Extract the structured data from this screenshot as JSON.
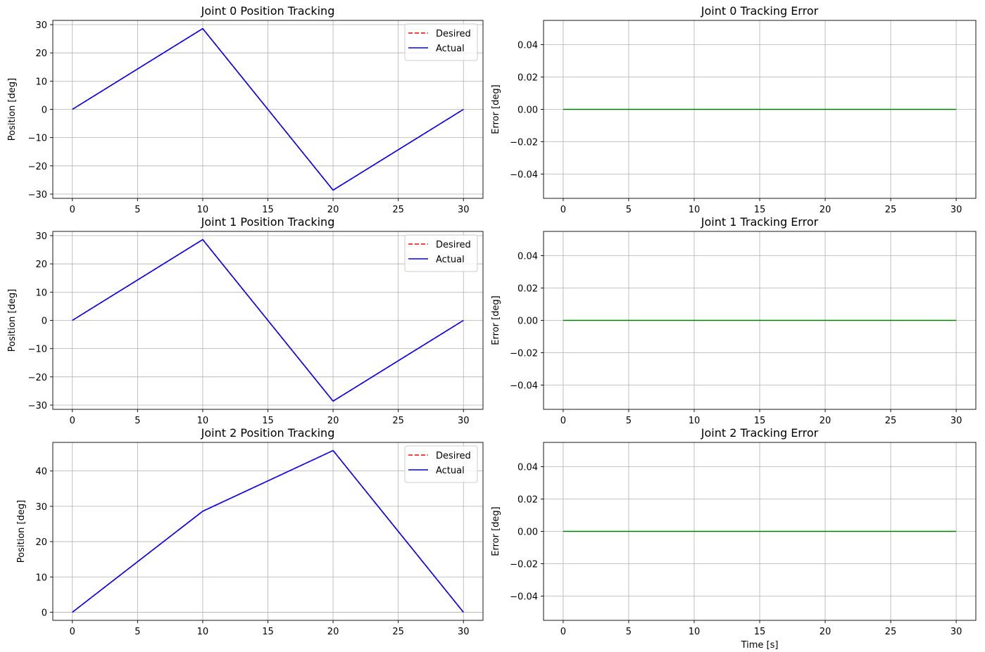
{
  "chart_data": [
    {
      "type": "line",
      "title": "Joint 0 Position Tracking",
      "xlabel": "",
      "ylabel": "Position [deg]",
      "xlim": [
        -1.5,
        31.5
      ],
      "ylim": [
        -31.5,
        31.5
      ],
      "xticks": [
        0,
        5,
        10,
        15,
        20,
        25,
        30
      ],
      "yticks": [
        -30,
        -20,
        -10,
        0,
        10,
        20,
        30
      ],
      "ytick_labels": [
        "−30",
        "−20",
        "−10",
        "0",
        "10",
        "20",
        "30"
      ],
      "grid": true,
      "legend": {
        "placement": "top-right"
      },
      "series": [
        {
          "name": "Desired",
          "color": "#ff0000",
          "style": "dashed",
          "x": [
            0,
            10,
            20,
            30
          ],
          "y": [
            0,
            28.6,
            -28.6,
            0
          ]
        },
        {
          "name": "Actual",
          "color": "#0000ff",
          "style": "solid",
          "x": [
            0,
            10,
            20,
            30
          ],
          "y": [
            0,
            28.6,
            -28.6,
            0
          ]
        }
      ]
    },
    {
      "type": "line",
      "title": "Joint 0 Tracking Error",
      "xlabel": "",
      "ylabel": "Error [deg]",
      "xlim": [
        -1.5,
        31.5
      ],
      "ylim": [
        -0.055,
        0.055
      ],
      "xticks": [
        0,
        5,
        10,
        15,
        20,
        25,
        30
      ],
      "yticks": [
        -0.04,
        -0.02,
        0,
        0.02,
        0.04
      ],
      "ytick_labels": [
        "−0.04",
        "−0.02",
        "0.00",
        "0.02",
        "0.04"
      ],
      "grid": true,
      "series": [
        {
          "color": "#008000",
          "style": "solid",
          "x": [
            0,
            30
          ],
          "y": [
            0,
            0
          ]
        }
      ]
    },
    {
      "type": "line",
      "title": "Joint 1 Position Tracking",
      "xlabel": "",
      "ylabel": "Position [deg]",
      "xlim": [
        -1.5,
        31.5
      ],
      "ylim": [
        -31.5,
        31.5
      ],
      "xticks": [
        0,
        5,
        10,
        15,
        20,
        25,
        30
      ],
      "yticks": [
        -30,
        -20,
        -10,
        0,
        10,
        20,
        30
      ],
      "ytick_labels": [
        "−30",
        "−20",
        "−10",
        "0",
        "10",
        "20",
        "30"
      ],
      "grid": true,
      "legend": {
        "placement": "top-right"
      },
      "series": [
        {
          "name": "Desired",
          "color": "#ff0000",
          "style": "dashed",
          "x": [
            0,
            10,
            20,
            30
          ],
          "y": [
            0,
            28.6,
            -28.6,
            0
          ]
        },
        {
          "name": "Actual",
          "color": "#0000ff",
          "style": "solid",
          "x": [
            0,
            10,
            20,
            30
          ],
          "y": [
            0,
            28.6,
            -28.6,
            0
          ]
        }
      ]
    },
    {
      "type": "line",
      "title": "Joint 1 Tracking Error",
      "xlabel": "",
      "ylabel": "Error [deg]",
      "xlim": [
        -1.5,
        31.5
      ],
      "ylim": [
        -0.055,
        0.055
      ],
      "xticks": [
        0,
        5,
        10,
        15,
        20,
        25,
        30
      ],
      "yticks": [
        -0.04,
        -0.02,
        0,
        0.02,
        0.04
      ],
      "ytick_labels": [
        "−0.04",
        "−0.02",
        "0.00",
        "0.02",
        "0.04"
      ],
      "grid": true,
      "series": [
        {
          "color": "#008000",
          "style": "solid",
          "x": [
            0,
            30
          ],
          "y": [
            0,
            0
          ]
        }
      ]
    },
    {
      "type": "line",
      "title": "Joint 2 Position Tracking",
      "xlabel": "",
      "ylabel": "Position [deg]",
      "xlim": [
        -1.5,
        31.5
      ],
      "ylim": [
        -2.3,
        48.1
      ],
      "xticks": [
        0,
        5,
        10,
        15,
        20,
        25,
        30
      ],
      "yticks": [
        0,
        10,
        20,
        30,
        40
      ],
      "ytick_labels": [
        "0",
        "10",
        "20",
        "30",
        "40"
      ],
      "grid": true,
      "legend": {
        "placement": "top-right"
      },
      "series": [
        {
          "name": "Desired",
          "color": "#ff0000",
          "style": "dashed",
          "x": [
            0,
            10,
            20,
            30
          ],
          "y": [
            0,
            28.6,
            45.8,
            0
          ]
        },
        {
          "name": "Actual",
          "color": "#0000ff",
          "style": "solid",
          "x": [
            0,
            10,
            20,
            30
          ],
          "y": [
            0,
            28.6,
            45.8,
            0
          ]
        }
      ]
    },
    {
      "type": "line",
      "title": "Joint 2 Tracking Error",
      "xlabel": "Time [s]",
      "ylabel": "Error [deg]",
      "xlim": [
        -1.5,
        31.5
      ],
      "ylim": [
        -0.055,
        0.055
      ],
      "xticks": [
        0,
        5,
        10,
        15,
        20,
        25,
        30
      ],
      "yticks": [
        -0.04,
        -0.02,
        0,
        0.02,
        0.04
      ],
      "ytick_labels": [
        "−0.04",
        "−0.02",
        "0.00",
        "0.02",
        "0.04"
      ],
      "grid": true,
      "series": [
        {
          "color": "#008000",
          "style": "solid",
          "x": [
            0,
            30
          ],
          "y": [
            0,
            0
          ]
        }
      ]
    }
  ]
}
